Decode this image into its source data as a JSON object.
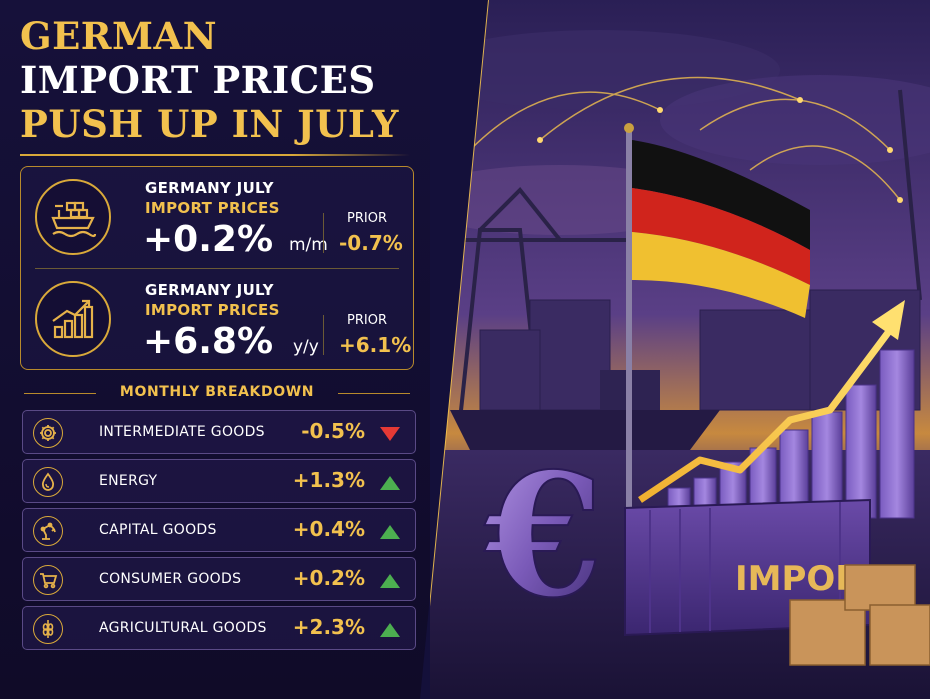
{
  "title": {
    "line1": "GERMAN",
    "line2": "IMPORT PRICES",
    "line3": "PUSH UP IN JULY"
  },
  "stats": [
    {
      "label1": "GERMANY JULY",
      "label2": "IMPORT PRICES",
      "value": "+0.2%",
      "unit": "m/m",
      "prior_label": "PRIOR",
      "prior_value": "-0.7%",
      "icon": "cargo-ship-icon"
    },
    {
      "label1": "GERMANY JULY",
      "label2": "IMPORT PRICES",
      "value": "+6.8%",
      "unit": "y/y",
      "prior_label": "PRIOR",
      "prior_value": "+6.1%",
      "icon": "rising-bar-chart-icon"
    }
  ],
  "breakdown": {
    "heading": "MONTHLY BREAKDOWN",
    "items": [
      {
        "name": "INTERMEDIATE GOODS",
        "value": "-0.5%",
        "direction": "down",
        "icon": "gear-icon"
      },
      {
        "name": "ENERGY",
        "value": "+1.3%",
        "direction": "up",
        "icon": "oil-drop-icon"
      },
      {
        "name": "CAPITAL GOODS",
        "value": "+0.4%",
        "direction": "up",
        "icon": "robot-arm-icon"
      },
      {
        "name": "CONSUMER GOODS",
        "value": "+0.2%",
        "direction": "up",
        "icon": "shopping-cart-icon"
      },
      {
        "name": "AGRICULTURAL GOODS",
        "value": "+2.3%",
        "direction": "up",
        "icon": "wheat-icon"
      }
    ]
  },
  "illustration": {
    "container_text": "IMPORT",
    "symbol": "€"
  },
  "colors": {
    "gold": "#f2c14e",
    "up": "#4caf50",
    "down": "#e53935",
    "background": "#120d2a"
  }
}
